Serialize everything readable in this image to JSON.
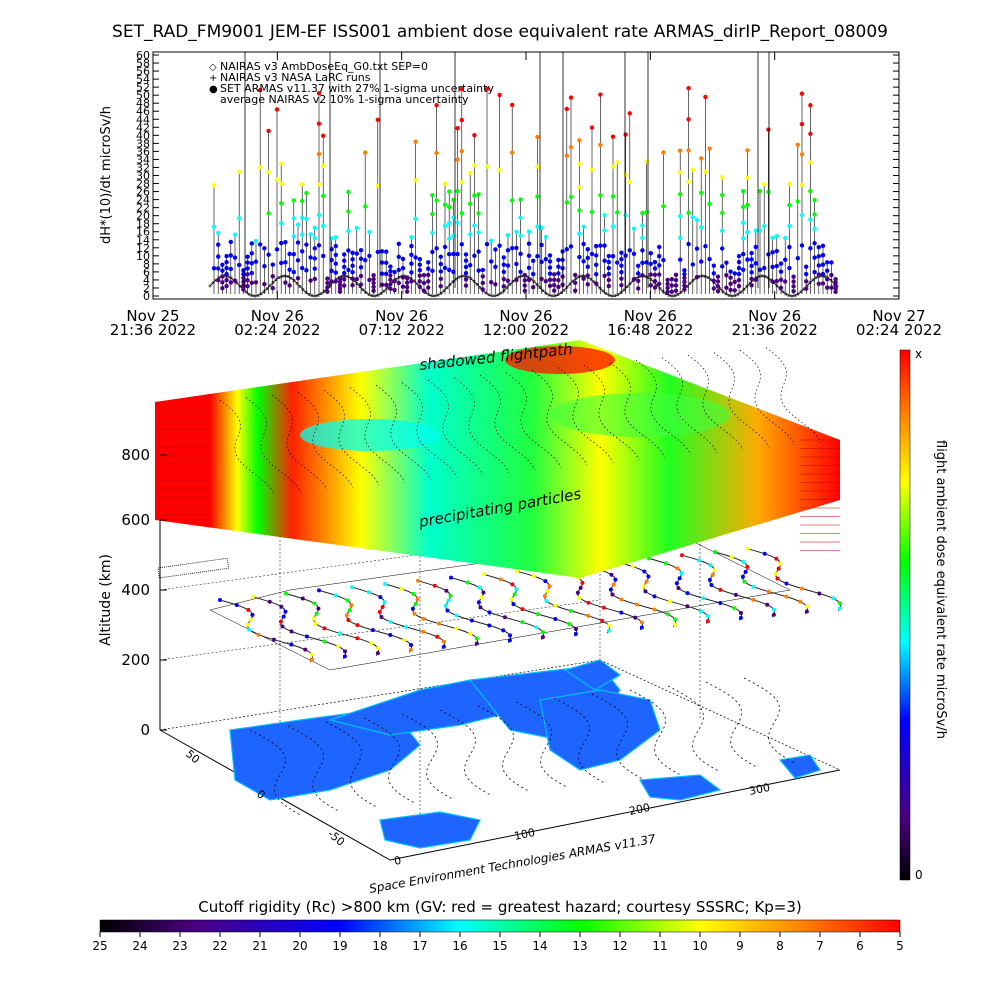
{
  "chart_data": [
    {
      "type": "scatter",
      "title": "SET_RAD_FM9001  JEM-EF ISS001 ambient dose equivalent rate ARMAS_dirIP_Report_08009",
      "ylabel": "dH*(10)/dt microSv/h",
      "xlabel": "",
      "ylim": [
        0,
        60
      ],
      "y_ticks": [
        "0",
        "2",
        "4",
        "6",
        "8",
        "10",
        "12",
        "14",
        "16",
        "18",
        "20",
        "22",
        "24",
        "26",
        "28",
        "30",
        "32",
        "34",
        "36",
        "38",
        "40",
        "42",
        "44",
        "46",
        "48",
        "50",
        "52",
        "54",
        "56",
        "58",
        "60"
      ],
      "x_ticks": [
        {
          "day": "Nov 25",
          "time": "21:36 2022"
        },
        {
          "day": "Nov 26",
          "time": "02:24 2022"
        },
        {
          "day": "Nov 26",
          "time": "07:12 2022"
        },
        {
          "day": "Nov 26",
          "time": "12:00 2022"
        },
        {
          "day": "Nov 26",
          "time": "16:48 2022"
        },
        {
          "day": "Nov 26",
          "time": "21:36 2022"
        },
        {
          "day": "Nov 27",
          "time": "02:24 2022"
        }
      ],
      "legend_position": "top-left",
      "legend": [
        {
          "symbol": "◇",
          "label": "NAIRAS v3 AmbDoseEq_G0.txt SEP=0"
        },
        {
          "symbol": "+",
          "label": "NAIRAS v3 NASA LaRC runs"
        },
        {
          "symbol": "●",
          "label": "SET ARMAS v11.37 with 27% 1-sigma uncertainty"
        },
        {
          "symbol": "",
          "label": "average NAIRAS v2 10% 1-sigma uncertainty"
        }
      ],
      "series_note": "ARMAS points colored by dose rate; NAIRAS baseline ~0-5 microSv/h oscillating"
    },
    {
      "type": "scatter",
      "title": "",
      "ylabel": "Altitude (km)",
      "z_ticks": [
        "0",
        "200",
        "400",
        "600",
        "800"
      ],
      "lat_ticks": [
        "-50",
        "0",
        "50"
      ],
      "lon_ticks": [
        "0",
        "100",
        "200",
        "300"
      ],
      "annotations": [
        "shadowed flightpath",
        "precipitating particles"
      ],
      "credit": "Space Environment Technologies ARMAS v11.37",
      "colorbar": {
        "label": "flight ambient dose equivalent rate microSv/h",
        "top": "x",
        "bottom": "0"
      }
    },
    {
      "type": "heatmap",
      "title": "Cutoff rigidity (Rc) >800 km (GV: red = greatest hazard; courtesy SSSRC; Kp=3)",
      "ticks": [
        "25",
        "24",
        "23",
        "22",
        "21",
        "20",
        "19",
        "18",
        "17",
        "16",
        "15",
        "14",
        "13",
        "12",
        "11",
        "10",
        "9",
        "8",
        "7",
        "6",
        "5"
      ]
    }
  ]
}
